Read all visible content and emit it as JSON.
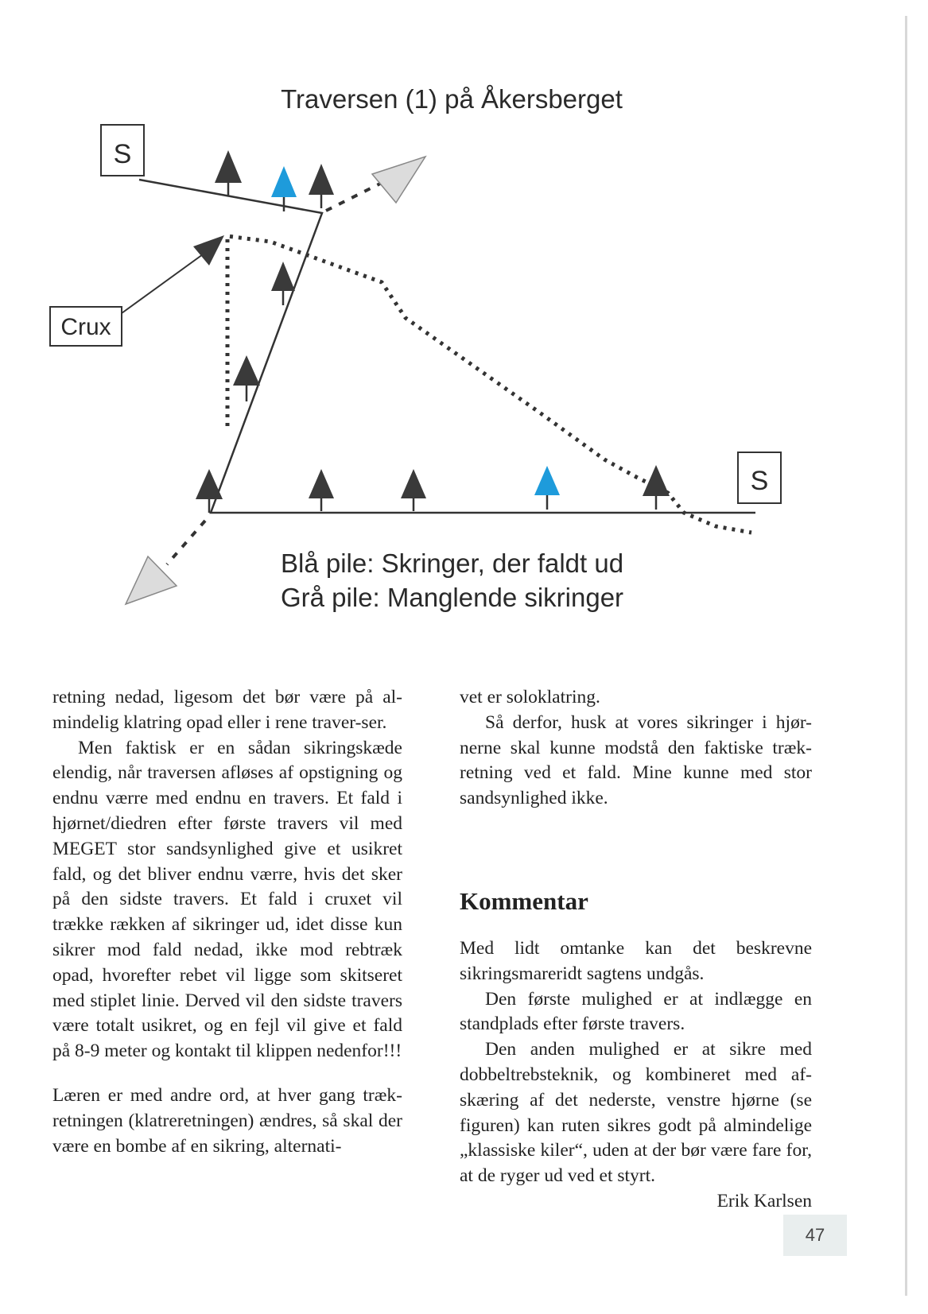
{
  "figure": {
    "title": "Traversen (1) på Åkersberget",
    "labels": {
      "stand_top": "S",
      "stand_bottom": "S",
      "crux": "Crux"
    },
    "legend": [
      "Blå pile: Skringer, der faldt ud",
      "Grå pile: Manglende sikringer"
    ],
    "colors": {
      "blue_marker": "#1e9bdb",
      "dark_marker": "#3a3a3a",
      "gray_marker": "#dcdcdc"
    }
  },
  "left_column": [
    "retning nedad, ligesom det bør være på al-mindelig klatring opad eller i rene traver-ser.",
    "Men faktisk er en sådan sikringskæde elendig, når traversen afløses af opstigning og endnu værre med endnu en travers. Et fald i hjørnet/diedren efter første travers vil med MEGET stor sandsynlighed give et usikret fald, og det bliver endnu værre, hvis det sker på den sidste travers. Et fald i cruxet vil trække rækken af sikringer ud, idet disse kun sikrer mod fald nedad, ikke mod rebtræk opad, hvorefter rebet vil ligge som skitseret med stiplet linie. Derved vil den sidste travers være totalt usikret, og en fejl vil give et fald på 8-9 meter og kontakt til klippen nedenfor!!!",
    "Læren er med andre ord, at hver gang træk-retningen (klatreretningen) ændres, så skal der være en bombe af en sikring, alternati-"
  ],
  "right_column": {
    "top": [
      "vet er soloklatring.",
      "Så derfor, husk at vores sikringer i hjør-nerne skal kunne modstå den faktiske træk-retning ved et fald. Mine kunne med stor sandsynlighed ikke."
    ],
    "heading": "Kommentar",
    "bottom": [
      "Med lidt omtanke kan det beskrevne sikringsmareridt sagtens undgås.",
      "Den første mulighed er at indlægge en standplads efter første travers.",
      "Den anden mulighed er at sikre med dobbeltrebsteknik, og kombineret med af-skæring af det nederste, venstre hjørne (se figuren) kan ruten sikres godt på almindelige „klassiske kiler“, uden at der bør være fare for, at de ryger ud ved et styrt."
    ],
    "author": "Erik Karlsen"
  },
  "page_number": "47"
}
